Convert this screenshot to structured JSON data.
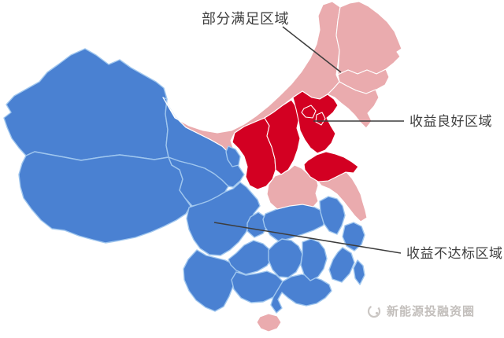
{
  "figure": {
    "type": "china-province-status-map",
    "background": "#ffffff"
  },
  "legend": {
    "partial": {
      "label": "部分满足区域",
      "fill": "#eaabae",
      "stroke": "#ffffff"
    },
    "good": {
      "label": "收益良好区域",
      "fill": "#d30022",
      "stroke": "#ffffff"
    },
    "below": {
      "label": "收益不达标区域",
      "fill": "#4a81d2",
      "stroke": "#9fc6ee"
    }
  },
  "annotation_line_color": "#3d3d3d",
  "label_text_color": "#3f3f3f",
  "regions": [
    {
      "id": "xinjiang",
      "category": "below"
    },
    {
      "id": "tibet",
      "category": "below"
    },
    {
      "id": "qinghai",
      "category": "below"
    },
    {
      "id": "gansu",
      "category": "below"
    },
    {
      "id": "ningxia",
      "category": "below"
    },
    {
      "id": "sichuan",
      "category": "below"
    },
    {
      "id": "chongqing",
      "category": "below"
    },
    {
      "id": "yunnan",
      "category": "below"
    },
    {
      "id": "guizhou",
      "category": "below"
    },
    {
      "id": "guangxi",
      "category": "below"
    },
    {
      "id": "guangdong",
      "category": "below"
    },
    {
      "id": "hunan",
      "category": "below"
    },
    {
      "id": "hubei",
      "category": "below"
    },
    {
      "id": "jiangxi",
      "category": "below"
    },
    {
      "id": "anhui",
      "category": "below"
    },
    {
      "id": "zhejiang",
      "category": "below"
    },
    {
      "id": "fujian",
      "category": "below"
    },
    {
      "id": "taiwan",
      "category": "below"
    },
    {
      "id": "neimenggu",
      "category": "partial"
    },
    {
      "id": "heilongjiang",
      "category": "partial"
    },
    {
      "id": "jilin",
      "category": "partial"
    },
    {
      "id": "liaoning",
      "category": "partial"
    },
    {
      "id": "henan",
      "category": "partial"
    },
    {
      "id": "jiangsu",
      "category": "partial"
    },
    {
      "id": "hainan",
      "category": "partial"
    },
    {
      "id": "shaanxi",
      "category": "good"
    },
    {
      "id": "shanxi",
      "category": "good"
    },
    {
      "id": "hebei",
      "category": "good"
    },
    {
      "id": "beijing",
      "category": "good"
    },
    {
      "id": "tianjin",
      "category": "good"
    },
    {
      "id": "shandong",
      "category": "good"
    }
  ],
  "watermark": {
    "text": "新能源投融资圈",
    "color": "#c3bfbc"
  }
}
